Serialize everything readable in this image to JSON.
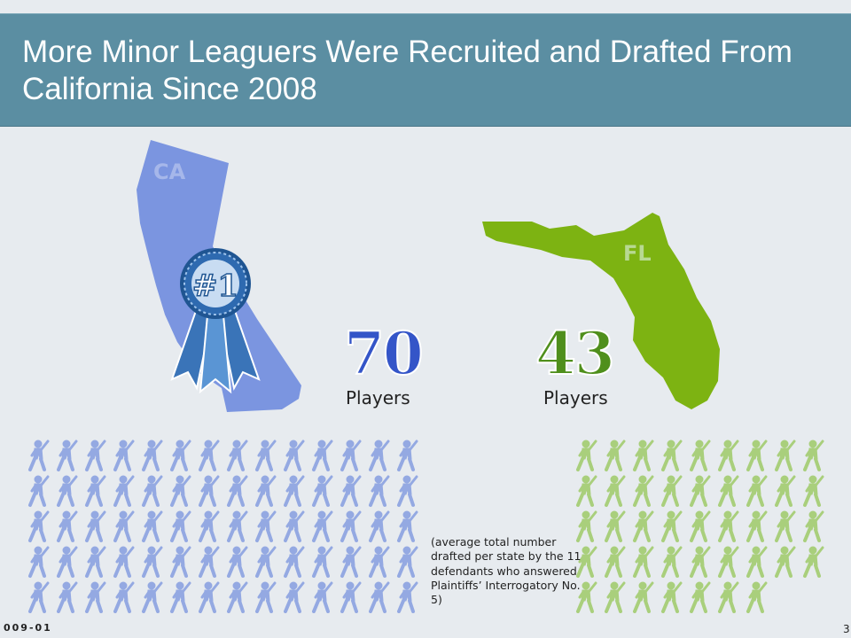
{
  "title": "More Minor Leaguers Were Recruited and Drafted From California Since 2008",
  "california": {
    "label": "CA",
    "players": "70",
    "players_label": "Players",
    "badge": "#1",
    "color": "#7b95e0",
    "number_color": "#3455c8",
    "icon_color": "#94a9e2"
  },
  "florida": {
    "label": "FL",
    "players": "43",
    "players_label": "Players",
    "color": "#7db312",
    "number_color": "#4f8f1c",
    "icon_color": "#a9cf7c"
  },
  "note": "(average total number drafted per state by the 11 defendants who answered Plaintiffs’ Interrogatory No. 5)",
  "footer": {
    "code": "009-01",
    "page": "3"
  },
  "chart_data": {
    "type": "pictograph",
    "categories": [
      "CA",
      "FL"
    ],
    "values": [
      70,
      43
    ],
    "icon": "baseball-player-icon"
  }
}
